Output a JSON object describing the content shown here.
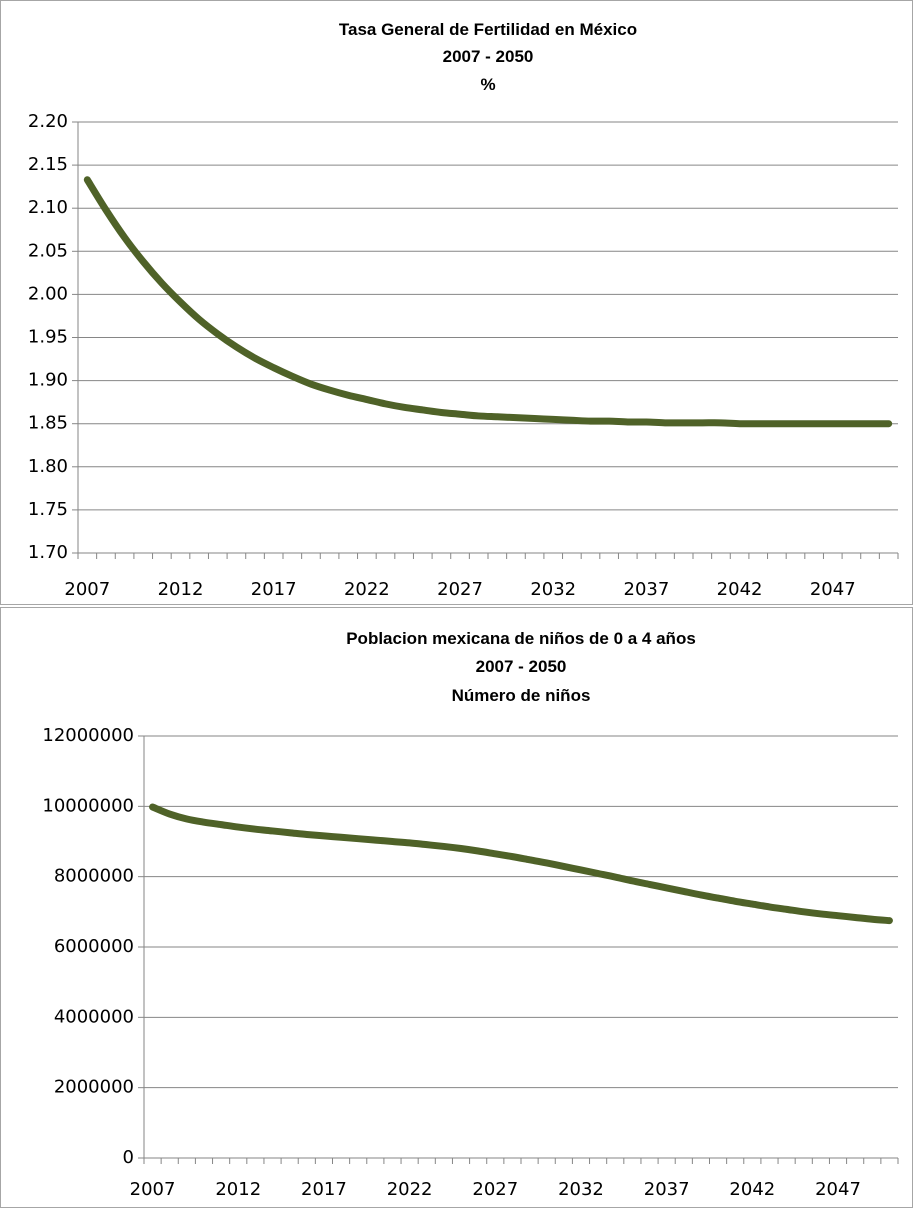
{
  "colors": {
    "series": "#4f6228",
    "grid": "#868686"
  },
  "chart_data": [
    {
      "type": "line",
      "title_lines": [
        "Tasa General de Fertilidad en México",
        "2007 - 2050",
        "%"
      ],
      "xlabel": "",
      "ylabel": "",
      "ylim": [
        1.7,
        2.2
      ],
      "y_ticks": [
        "2.20",
        "2.15",
        "2.10",
        "2.05",
        "2.00",
        "1.95",
        "1.90",
        "1.85",
        "1.80",
        "1.75",
        "1.70"
      ],
      "x_ticks": [
        "2007",
        "2012",
        "2017",
        "2022",
        "2027",
        "2032",
        "2037",
        "2042",
        "2047"
      ],
      "x_range": [
        2007,
        2050
      ],
      "grid": true,
      "legend": "none",
      "series": [
        {
          "x": [
            2007,
            2008,
            2009,
            2010,
            2011,
            2012,
            2013,
            2014,
            2015,
            2016,
            2017,
            2018,
            2019,
            2020,
            2021,
            2022,
            2023,
            2024,
            2025,
            2026,
            2027,
            2028,
            2029,
            2030,
            2031,
            2032,
            2033,
            2034,
            2035,
            2036,
            2037,
            2038,
            2039,
            2040,
            2041,
            2042,
            2043,
            2044,
            2045,
            2046,
            2047,
            2048,
            2049,
            2050
          ],
          "values": [
            2.133,
            2.098,
            2.066,
            2.038,
            2.013,
            1.991,
            1.971,
            1.954,
            1.939,
            1.926,
            1.915,
            1.905,
            1.896,
            1.889,
            1.883,
            1.878,
            1.873,
            1.869,
            1.866,
            1.863,
            1.861,
            1.859,
            1.858,
            1.857,
            1.856,
            1.855,
            1.854,
            1.853,
            1.853,
            1.852,
            1.852,
            1.851,
            1.851,
            1.851,
            1.851,
            1.85,
            1.85,
            1.85,
            1.85,
            1.85,
            1.85,
            1.85,
            1.85,
            1.85
          ]
        }
      ]
    },
    {
      "type": "line",
      "title_lines": [
        "Poblacion mexicana de niños de 0 a 4 años",
        "2007 - 2050",
        "Número de niños"
      ],
      "xlabel": "",
      "ylabel": "",
      "ylim": [
        0,
        12000000
      ],
      "y_ticks": [
        "12000000",
        "10000000",
        "8000000",
        "6000000",
        "4000000",
        "2000000",
        "0"
      ],
      "x_ticks": [
        "2007",
        "2012",
        "2017",
        "2022",
        "2027",
        "2032",
        "2037",
        "2042",
        "2047"
      ],
      "x_range": [
        2007,
        2050
      ],
      "grid": true,
      "legend": "none",
      "series": [
        {
          "x": [
            2007,
            2008,
            2009,
            2010,
            2011,
            2012,
            2013,
            2014,
            2015,
            2016,
            2017,
            2018,
            2019,
            2020,
            2021,
            2022,
            2023,
            2024,
            2025,
            2026,
            2027,
            2028,
            2029,
            2030,
            2031,
            2032,
            2033,
            2034,
            2035,
            2036,
            2037,
            2038,
            2039,
            2040,
            2041,
            2042,
            2043,
            2044,
            2045,
            2046,
            2047,
            2048,
            2049,
            2050
          ],
          "values": [
            9980000,
            9780000,
            9640000,
            9550000,
            9480000,
            9410000,
            9350000,
            9300000,
            9250000,
            9200000,
            9160000,
            9120000,
            9080000,
            9040000,
            9000000,
            8960000,
            8910000,
            8860000,
            8800000,
            8730000,
            8650000,
            8570000,
            8480000,
            8390000,
            8290000,
            8190000,
            8090000,
            7990000,
            7880000,
            7780000,
            7680000,
            7580000,
            7480000,
            7390000,
            7300000,
            7220000,
            7140000,
            7070000,
            7000000,
            6940000,
            6890000,
            6840000,
            6790000,
            6750000
          ]
        }
      ]
    }
  ]
}
